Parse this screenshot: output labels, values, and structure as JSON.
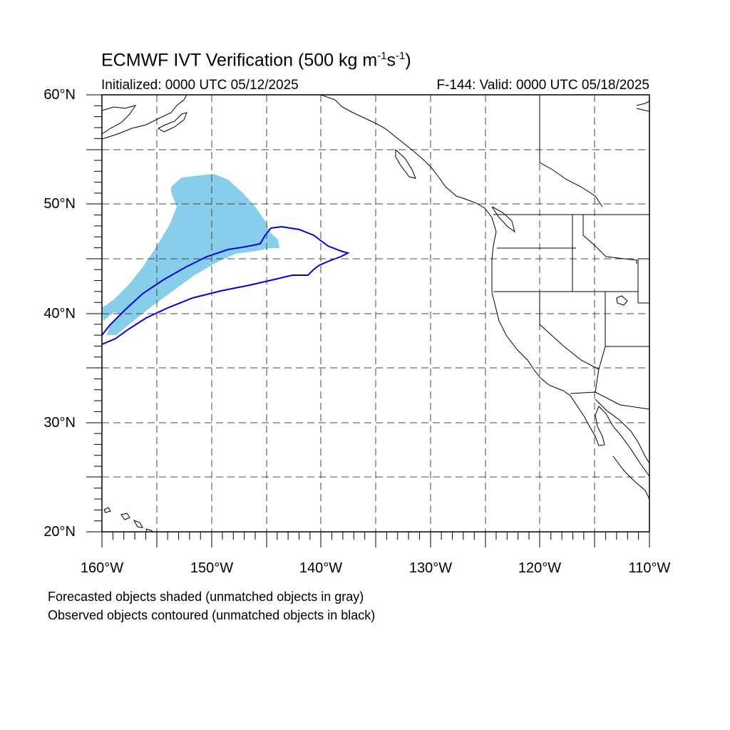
{
  "title": {
    "main": "ECMWF IVT Verification (500 kg m",
    "exp1": "-1",
    "mid": "s",
    "exp2": "-1",
    "end": ")"
  },
  "initialized": "Initialized: 0000 UTC 05/12/2025",
  "valid": "F-144: Valid: 0000 UTC 05/18/2025",
  "lat_labels": [
    "60°N",
    "50°N",
    "40°N",
    "30°N",
    "20°N"
  ],
  "lon_labels": [
    "160°W",
    "150°W",
    "140°W",
    "130°W",
    "120°W",
    "110°W"
  ],
  "legend": {
    "line1": "Forecasted objects shaded (unmatched objects in gray)",
    "line2": "Observed objects contoured (unmatched objects in black)"
  },
  "colors": {
    "forecast_fill": "#87ceeb",
    "observed_contour": "#0000e6",
    "coast": "#000000",
    "grid": "#444444"
  },
  "map_extent": {
    "lon_min": -160,
    "lon_max": -110,
    "lat_min": 20,
    "lat_max": 60,
    "grid_lon_step": 5,
    "grid_lat_step": 5
  }
}
